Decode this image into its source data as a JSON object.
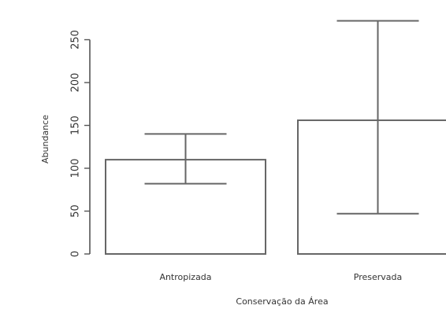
{
  "chart_data": {
    "type": "bar",
    "categories": [
      "Antropizada",
      "Preservada"
    ],
    "values": [
      110,
      156
    ],
    "error_bars": [
      {
        "lower": 82,
        "upper": 140
      },
      {
        "lower": 47,
        "upper": 272
      }
    ],
    "xlabel": "Conservação da Área",
    "ylabel": "Abundance",
    "yticks": [
      0,
      50,
      100,
      150,
      200,
      250
    ],
    "ylim": [
      0,
      280
    ],
    "grid": false,
    "bar_fill": "#ffffff",
    "bar_stroke": "#666666"
  }
}
